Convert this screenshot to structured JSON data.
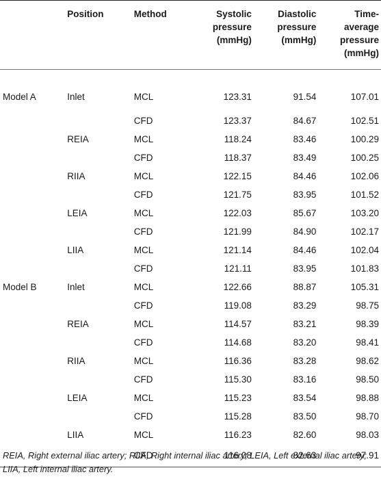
{
  "headers": {
    "model": "",
    "position": "Position",
    "method": "Method",
    "systolic": [
      "Systolic",
      "pressure",
      "(mmHg)"
    ],
    "diastolic": [
      "Diastolic",
      "pressure",
      "(mmHg)"
    ],
    "time_average": [
      "Time-",
      "average",
      "pressure",
      "(mmHg)"
    ]
  },
  "rows": [
    {
      "model": "Model A",
      "position": "Inlet",
      "method": "MCL",
      "systolic": "123.31",
      "diastolic": "91.54",
      "time_average": "107.01"
    },
    {
      "model": "",
      "position": "",
      "method": "CFD",
      "systolic": "123.37",
      "diastolic": "84.67",
      "time_average": "102.51"
    },
    {
      "model": "",
      "position": "REIA",
      "method": "MCL",
      "systolic": "118.24",
      "diastolic": "83.46",
      "time_average": "100.29"
    },
    {
      "model": "",
      "position": "",
      "method": "CFD",
      "systolic": "118.37",
      "diastolic": "83.49",
      "time_average": "100.25"
    },
    {
      "model": "",
      "position": "RIIA",
      "method": "MCL",
      "systolic": "122.15",
      "diastolic": "84.46",
      "time_average": "102.06"
    },
    {
      "model": "",
      "position": "",
      "method": "CFD",
      "systolic": "121.75",
      "diastolic": "83.95",
      "time_average": "101.52"
    },
    {
      "model": "",
      "position": "LEIA",
      "method": "MCL",
      "systolic": "122.03",
      "diastolic": "85.67",
      "time_average": "103.20"
    },
    {
      "model": "",
      "position": "",
      "method": "CFD",
      "systolic": "121.99",
      "diastolic": "84.90",
      "time_average": "102.17"
    },
    {
      "model": "",
      "position": "LIIA",
      "method": "MCL",
      "systolic": "121.14",
      "diastolic": "84.46",
      "time_average": "102.04"
    },
    {
      "model": "",
      "position": "",
      "method": "CFD",
      "systolic": "121.11",
      "diastolic": "83.95",
      "time_average": "101.83"
    },
    {
      "model": "Model B",
      "position": "Inlet",
      "method": "MCL",
      "systolic": "122.66",
      "diastolic": "88.87",
      "time_average": "105.31"
    },
    {
      "model": "",
      "position": "",
      "method": "CFD",
      "systolic": "119.08",
      "diastolic": "83.29",
      "time_average": "98.75"
    },
    {
      "model": "",
      "position": "REIA",
      "method": "MCL",
      "systolic": "114.57",
      "diastolic": "83.21",
      "time_average": "98.39"
    },
    {
      "model": "",
      "position": "",
      "method": "CFD",
      "systolic": "114.68",
      "diastolic": "83.20",
      "time_average": "98.41"
    },
    {
      "model": "",
      "position": "RIIA",
      "method": "MCL",
      "systolic": "116.36",
      "diastolic": "83.28",
      "time_average": "98.62"
    },
    {
      "model": "",
      "position": "",
      "method": "CFD",
      "systolic": "115.30",
      "diastolic": "83.16",
      "time_average": "98.50"
    },
    {
      "model": "",
      "position": "LEIA",
      "method": "MCL",
      "systolic": "115.23",
      "diastolic": "83.54",
      "time_average": "98.88"
    },
    {
      "model": "",
      "position": "",
      "method": "CFD",
      "systolic": "115.28",
      "diastolic": "83.50",
      "time_average": "98.70"
    },
    {
      "model": "",
      "position": "LIIA",
      "method": "MCL",
      "systolic": "116.23",
      "diastolic": "82.60",
      "time_average": "98.03"
    },
    {
      "model": "",
      "position": "",
      "method": "CFD",
      "systolic": "116.08",
      "diastolic": "82.63",
      "time_average": "97.91"
    }
  ],
  "footnote": "REIA, Right external iliac artery; RIIA, Right internal iliac artery; LEIA, Left external iliac artery; LIIA, Left internal iliac artery."
}
